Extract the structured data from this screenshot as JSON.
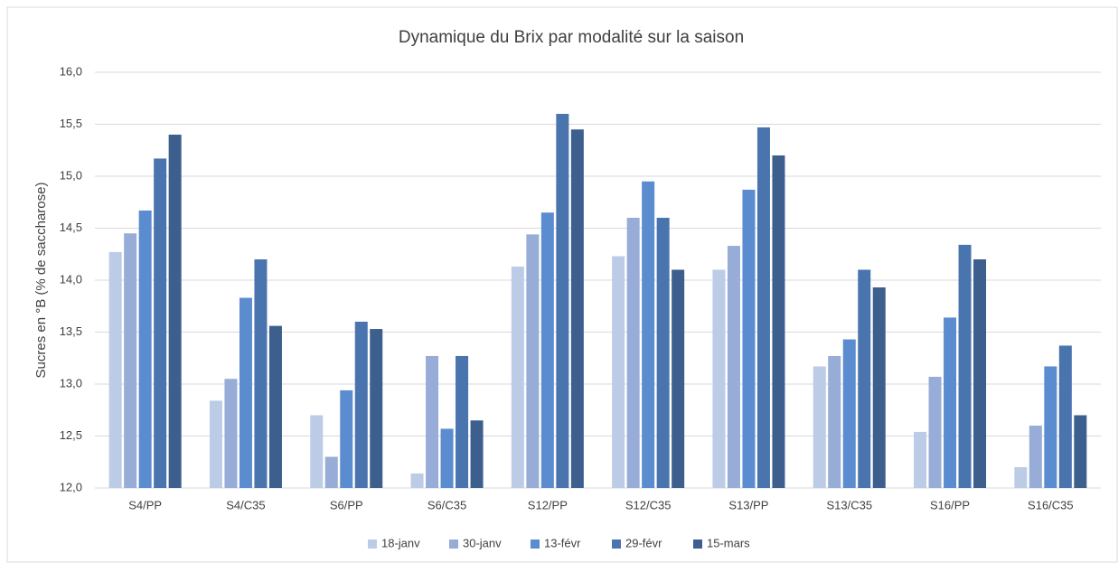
{
  "chart_data": {
    "type": "bar",
    "title": "Dynamique du Brix par modalité sur la saison",
    "y_label": "Sucres en °B (% de saccharose)",
    "categories": [
      "S4/PP",
      "S4/C35",
      "S6/PP",
      "S6/C35",
      "S12/PP",
      "S12/C35",
      "S13/PP",
      "S13/C35",
      "S16/PP",
      "S16/C35"
    ],
    "series": [
      {
        "name": "18-janv",
        "color": "#bccbe6",
        "values": [
          14.27,
          12.84,
          12.7,
          12.14,
          14.13,
          14.23,
          14.1,
          13.17,
          12.54,
          12.2
        ]
      },
      {
        "name": "30-janv",
        "color": "#97acd6",
        "values": [
          14.45,
          13.05,
          12.3,
          13.27,
          14.44,
          14.6,
          14.33,
          13.27,
          13.07,
          12.6
        ]
      },
      {
        "name": "13-févr",
        "color": "#5b8ccf",
        "values": [
          14.67,
          13.83,
          12.94,
          12.57,
          14.65,
          14.95,
          14.87,
          13.43,
          13.64,
          13.17
        ]
      },
      {
        "name": "29-févr",
        "color": "#4a74ad",
        "values": [
          15.17,
          14.2,
          13.6,
          13.27,
          15.6,
          14.6,
          15.47,
          14.1,
          14.34,
          13.37
        ]
      },
      {
        "name": "15-mars",
        "color": "#3c5f8e",
        "values": [
          15.4,
          13.56,
          13.53,
          12.65,
          15.45,
          14.1,
          15.2,
          13.93,
          14.2,
          12.7
        ]
      }
    ],
    "ylim": [
      12,
      16
    ],
    "yticks": [
      {
        "value": 12,
        "label": "12,0"
      },
      {
        "value": 12.5,
        "label": "12,5"
      },
      {
        "value": 13,
        "label": "13,0"
      },
      {
        "value": 13.5,
        "label": "13,5"
      },
      {
        "value": 14,
        "label": "14,0"
      },
      {
        "value": 14.5,
        "label": "14,5"
      },
      {
        "value": 15,
        "label": "15,0"
      },
      {
        "value": 15.5,
        "label": "15,5"
      },
      {
        "value": 16,
        "label": "16,0"
      }
    ],
    "grid": true,
    "legend": "bottom"
  }
}
